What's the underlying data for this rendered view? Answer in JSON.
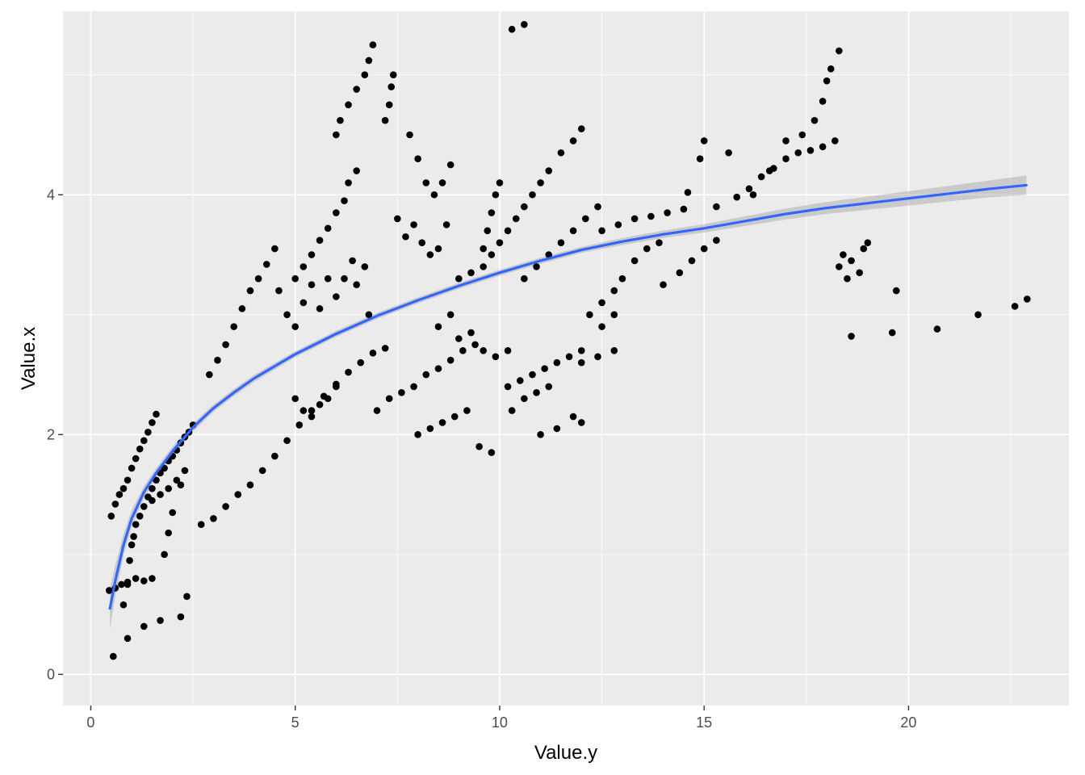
{
  "chart_data": {
    "type": "scatter",
    "xlabel": "Value.y",
    "ylabel": "Value.x",
    "xlim": [
      -0.68,
      23.92
    ],
    "ylim": [
      -0.26,
      5.53
    ],
    "x_ticks": [
      0,
      5,
      10,
      15,
      20
    ],
    "x_tick_labels": [
      "0",
      "5",
      "10",
      "15",
      "20"
    ],
    "y_ticks": [
      0,
      2,
      4
    ],
    "y_tick_labels": [
      "0",
      "2",
      "4"
    ],
    "grid": true,
    "colors": {
      "panel_background": "#ebebeb",
      "grid_major": "#ffffff",
      "points": "#000000",
      "smooth_line": "#3366ff",
      "confidence_band": "#999999"
    },
    "smooth": {
      "method": "loess",
      "x": [
        0.47,
        0.6,
        0.8,
        1.0,
        1.3,
        1.6,
        2.0,
        2.5,
        3.0,
        3.5,
        4.0,
        5.0,
        6.0,
        7.0,
        8.0,
        9.0,
        10.0,
        11.0,
        12.0,
        13.0,
        14.0,
        15.0,
        16.0,
        17.0,
        18.0,
        19.0,
        20.0,
        21.0,
        22.0,
        22.88
      ],
      "y": [
        0.55,
        0.78,
        1.08,
        1.3,
        1.52,
        1.68,
        1.86,
        2.06,
        2.22,
        2.35,
        2.47,
        2.67,
        2.84,
        2.99,
        3.12,
        3.24,
        3.35,
        3.45,
        3.54,
        3.61,
        3.67,
        3.72,
        3.78,
        3.84,
        3.89,
        3.93,
        3.97,
        4.01,
        4.05,
        4.08
      ],
      "ci_halfwidth": [
        0.17,
        0.13,
        0.09,
        0.07,
        0.05,
        0.04,
        0.04,
        0.035,
        0.03,
        0.03,
        0.03,
        0.025,
        0.025,
        0.025,
        0.025,
        0.025,
        0.025,
        0.025,
        0.025,
        0.03,
        0.03,
        0.035,
        0.04,
        0.045,
        0.05,
        0.055,
        0.06,
        0.065,
        0.07,
        0.08
      ]
    },
    "series": [
      {
        "points": [
          [
            0.55,
            0.15
          ],
          [
            0.9,
            0.3
          ],
          [
            1.3,
            0.4
          ],
          [
            1.7,
            0.45
          ],
          [
            2.2,
            0.48
          ],
          [
            2.35,
            0.65
          ],
          [
            0.45,
            0.7
          ],
          [
            0.6,
            0.72
          ],
          [
            0.75,
            0.75
          ],
          [
            0.9,
            0.77
          ],
          [
            1.1,
            0.8
          ],
          [
            1.3,
            0.78
          ],
          [
            1.5,
            0.8
          ],
          [
            0.5,
            1.32
          ],
          [
            0.6,
            1.42
          ],
          [
            0.7,
            1.5
          ],
          [
            0.8,
            1.55
          ],
          [
            0.9,
            1.62
          ],
          [
            1.0,
            1.72
          ],
          [
            1.1,
            1.8
          ],
          [
            1.2,
            1.88
          ],
          [
            1.3,
            1.95
          ],
          [
            1.4,
            2.02
          ],
          [
            1.5,
            2.1
          ],
          [
            1.6,
            2.17
          ],
          [
            0.8,
            0.58
          ],
          [
            0.9,
            0.75
          ],
          [
            0.95,
            0.95
          ],
          [
            1.0,
            1.08
          ],
          [
            1.05,
            1.15
          ],
          [
            1.1,
            1.25
          ],
          [
            1.2,
            1.32
          ],
          [
            1.3,
            1.4
          ],
          [
            1.4,
            1.48
          ],
          [
            1.5,
            1.55
          ],
          [
            1.6,
            1.62
          ],
          [
            1.7,
            1.68
          ],
          [
            1.8,
            1.72
          ],
          [
            1.9,
            1.78
          ],
          [
            2.0,
            1.82
          ],
          [
            2.1,
            1.87
          ],
          [
            2.2,
            1.93
          ],
          [
            2.3,
            1.98
          ],
          [
            2.4,
            2.02
          ],
          [
            2.5,
            2.08
          ],
          [
            1.5,
            1.45
          ],
          [
            1.7,
            1.5
          ],
          [
            1.9,
            1.55
          ],
          [
            2.1,
            1.62
          ],
          [
            2.2,
            1.58
          ],
          [
            2.3,
            1.7
          ],
          [
            1.8,
            1.0
          ],
          [
            1.9,
            1.18
          ],
          [
            2.0,
            1.35
          ],
          [
            2.7,
            1.25
          ],
          [
            3.0,
            1.3
          ],
          [
            3.3,
            1.4
          ],
          [
            3.6,
            1.5
          ],
          [
            3.9,
            1.58
          ],
          [
            4.2,
            1.7
          ],
          [
            4.5,
            1.82
          ],
          [
            4.8,
            1.95
          ],
          [
            5.1,
            2.08
          ],
          [
            5.4,
            2.2
          ],
          [
            5.7,
            2.32
          ],
          [
            6.0,
            2.42
          ],
          [
            6.3,
            2.52
          ],
          [
            6.6,
            2.6
          ],
          [
            6.9,
            2.68
          ],
          [
            7.2,
            2.72
          ],
          [
            2.9,
            2.5
          ],
          [
            3.1,
            2.62
          ],
          [
            3.3,
            2.75
          ],
          [
            3.5,
            2.9
          ],
          [
            3.7,
            3.05
          ],
          [
            3.9,
            3.2
          ],
          [
            4.1,
            3.3
          ],
          [
            4.3,
            3.42
          ],
          [
            4.5,
            3.55
          ],
          [
            5.0,
            3.3
          ],
          [
            5.2,
            3.4
          ],
          [
            5.4,
            3.5
          ],
          [
            5.6,
            3.62
          ],
          [
            5.8,
            3.72
          ],
          [
            6.0,
            3.85
          ],
          [
            6.2,
            3.95
          ],
          [
            6.3,
            4.1
          ],
          [
            6.5,
            4.2
          ],
          [
            6.0,
            4.5
          ],
          [
            6.1,
            4.62
          ],
          [
            6.3,
            4.75
          ],
          [
            6.5,
            4.88
          ],
          [
            6.7,
            5.0
          ],
          [
            6.8,
            5.12
          ],
          [
            6.9,
            5.25
          ],
          [
            7.2,
            4.62
          ],
          [
            7.3,
            4.75
          ],
          [
            7.35,
            4.9
          ],
          [
            7.4,
            5.0
          ],
          [
            4.6,
            3.2
          ],
          [
            4.8,
            3.0
          ],
          [
            5.0,
            2.9
          ],
          [
            5.2,
            3.1
          ],
          [
            5.4,
            3.25
          ],
          [
            5.6,
            3.05
          ],
          [
            5.8,
            3.3
          ],
          [
            6.0,
            3.15
          ],
          [
            6.2,
            3.3
          ],
          [
            6.4,
            3.45
          ],
          [
            6.5,
            3.25
          ],
          [
            6.7,
            3.4
          ],
          [
            6.8,
            3.0
          ],
          [
            5.0,
            2.3
          ],
          [
            5.2,
            2.2
          ],
          [
            5.4,
            2.15
          ],
          [
            5.6,
            2.25
          ],
          [
            5.8,
            2.3
          ],
          [
            6.0,
            2.4
          ],
          [
            7.0,
            2.2
          ],
          [
            7.3,
            2.3
          ],
          [
            7.6,
            2.35
          ],
          [
            7.9,
            2.4
          ],
          [
            8.2,
            2.5
          ],
          [
            8.5,
            2.55
          ],
          [
            8.8,
            2.62
          ],
          [
            9.1,
            2.7
          ],
          [
            9.4,
            2.75
          ],
          [
            7.5,
            3.8
          ],
          [
            7.7,
            3.65
          ],
          [
            7.9,
            3.75
          ],
          [
            8.1,
            3.6
          ],
          [
            8.3,
            3.5
          ],
          [
            8.5,
            3.55
          ],
          [
            8.7,
            3.75
          ],
          [
            7.8,
            4.5
          ],
          [
            8.0,
            4.3
          ],
          [
            8.2,
            4.1
          ],
          [
            8.4,
            4.0
          ],
          [
            8.6,
            4.1
          ],
          [
            8.8,
            4.25
          ],
          [
            8.0,
            2.0
          ],
          [
            8.3,
            2.05
          ],
          [
            8.6,
            2.1
          ],
          [
            8.9,
            2.15
          ],
          [
            9.2,
            2.2
          ],
          [
            9.5,
            1.9
          ],
          [
            9.8,
            1.85
          ],
          [
            8.5,
            2.9
          ],
          [
            8.8,
            3.0
          ],
          [
            9.0,
            2.8
          ],
          [
            9.3,
            2.85
          ],
          [
            9.6,
            2.7
          ],
          [
            9.9,
            2.65
          ],
          [
            10.2,
            2.7
          ],
          [
            9.0,
            3.3
          ],
          [
            9.3,
            3.35
          ],
          [
            9.6,
            3.4
          ],
          [
            9.8,
            3.5
          ],
          [
            10.0,
            3.6
          ],
          [
            10.2,
            3.7
          ],
          [
            10.4,
            3.8
          ],
          [
            10.6,
            3.9
          ],
          [
            10.8,
            4.0
          ],
          [
            11.0,
            4.1
          ],
          [
            11.2,
            4.2
          ],
          [
            9.6,
            3.55
          ],
          [
            9.7,
            3.7
          ],
          [
            9.8,
            3.85
          ],
          [
            9.9,
            4.0
          ],
          [
            10.0,
            4.1
          ],
          [
            10.2,
            2.4
          ],
          [
            10.5,
            2.45
          ],
          [
            10.8,
            2.5
          ],
          [
            11.1,
            2.55
          ],
          [
            11.4,
            2.6
          ],
          [
            11.7,
            2.65
          ],
          [
            12.0,
            2.7
          ],
          [
            10.3,
            2.2
          ],
          [
            10.6,
            2.3
          ],
          [
            10.9,
            2.35
          ],
          [
            11.2,
            2.4
          ],
          [
            10.6,
            3.3
          ],
          [
            10.9,
            3.4
          ],
          [
            11.2,
            3.5
          ],
          [
            11.5,
            3.6
          ],
          [
            11.8,
            3.7
          ],
          [
            12.1,
            3.8
          ],
          [
            12.4,
            3.9
          ],
          [
            11.0,
            2.0
          ],
          [
            11.4,
            2.05
          ],
          [
            11.8,
            2.15
          ],
          [
            12.0,
            2.1
          ],
          [
            10.3,
            5.38
          ],
          [
            10.6,
            5.42
          ],
          [
            11.5,
            4.35
          ],
          [
            11.8,
            4.45
          ],
          [
            12.0,
            4.55
          ],
          [
            12.2,
            3.0
          ],
          [
            12.5,
            3.1
          ],
          [
            12.8,
            3.2
          ],
          [
            13.0,
            3.3
          ],
          [
            13.3,
            3.45
          ],
          [
            13.6,
            3.55
          ],
          [
            13.9,
            3.6
          ],
          [
            12.5,
            3.7
          ],
          [
            12.9,
            3.75
          ],
          [
            13.3,
            3.8
          ],
          [
            13.7,
            3.82
          ],
          [
            14.1,
            3.85
          ],
          [
            14.5,
            3.88
          ],
          [
            12.0,
            2.6
          ],
          [
            12.4,
            2.65
          ],
          [
            12.8,
            2.7
          ],
          [
            12.5,
            2.9
          ],
          [
            12.8,
            3.0
          ],
          [
            14.0,
            3.25
          ],
          [
            14.4,
            3.35
          ],
          [
            14.7,
            3.45
          ],
          [
            15.0,
            3.55
          ],
          [
            15.3,
            3.62
          ],
          [
            14.6,
            4.02
          ],
          [
            14.9,
            4.3
          ],
          [
            15.0,
            4.45
          ],
          [
            15.3,
            3.9
          ],
          [
            15.6,
            4.35
          ],
          [
            15.8,
            3.98
          ],
          [
            16.1,
            4.05
          ],
          [
            16.4,
            4.15
          ],
          [
            16.7,
            4.22
          ],
          [
            17.0,
            4.3
          ],
          [
            17.3,
            4.35
          ],
          [
            17.6,
            4.37
          ],
          [
            17.9,
            4.4
          ],
          [
            18.2,
            4.45
          ],
          [
            16.2,
            4.0
          ],
          [
            16.6,
            4.2
          ],
          [
            17.0,
            4.45
          ],
          [
            17.4,
            4.5
          ],
          [
            17.7,
            4.62
          ],
          [
            17.9,
            4.78
          ],
          [
            18.0,
            4.95
          ],
          [
            18.1,
            5.05
          ],
          [
            18.3,
            5.2
          ],
          [
            18.3,
            3.4
          ],
          [
            18.4,
            3.5
          ],
          [
            18.5,
            3.3
          ],
          [
            18.6,
            3.45
          ],
          [
            18.8,
            3.35
          ],
          [
            18.9,
            3.55
          ],
          [
            19.0,
            3.6
          ],
          [
            18.6,
            2.82
          ],
          [
            19.6,
            2.85
          ],
          [
            19.7,
            3.2
          ],
          [
            20.7,
            2.88
          ],
          [
            21.7,
            3.0
          ],
          [
            22.6,
            3.07
          ],
          [
            22.9,
            3.13
          ]
        ]
      }
    ]
  }
}
